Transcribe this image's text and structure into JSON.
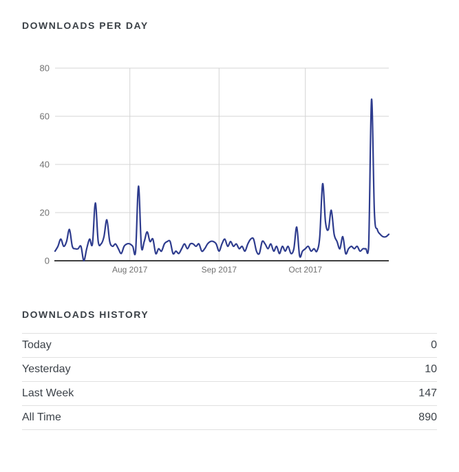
{
  "downloads_per_day": {
    "title": "DOWNLOADS PER DAY"
  },
  "chart_data": {
    "type": "line",
    "title": "DOWNLOADS PER DAY",
    "x_unit": "day",
    "x_tick_labels": [
      "Aug 2017",
      "Sep 2017",
      "Oct 2017"
    ],
    "x_tick_indices": [
      26,
      57,
      87
    ],
    "y_ticks": [
      0,
      20,
      40,
      60,
      80
    ],
    "ylim": [
      0,
      80
    ],
    "grid": true,
    "legend": "none",
    "line_color": "#2e3c8e",
    "grid_color": "#d4d4d4",
    "axis_color": "#3f3f3f",
    "tick_label_color": "#707070",
    "values": [
      4,
      6,
      9,
      6,
      8,
      13,
      6,
      5,
      5,
      6,
      0,
      5,
      9,
      7,
      24,
      8,
      7,
      10,
      17,
      8,
      6,
      7,
      5,
      3,
      6,
      7,
      7,
      6,
      4,
      31,
      6,
      8,
      12,
      8,
      9,
      3,
      5,
      4,
      7,
      8,
      8,
      3,
      4,
      3,
      5,
      7,
      5,
      7,
      7,
      6,
      7,
      4,
      5,
      7,
      8,
      8,
      7,
      4,
      7,
      9,
      6,
      8,
      6,
      7,
      5,
      6,
      4,
      7,
      9,
      9,
      4,
      3,
      8,
      7,
      5,
      7,
      4,
      6,
      3,
      6,
      4,
      6,
      3,
      5,
      14,
      2,
      4,
      5,
      6,
      4,
      5,
      4,
      10,
      32,
      16,
      13,
      21,
      11,
      8,
      5,
      10,
      3,
      5,
      6,
      5,
      6,
      4,
      5,
      5,
      6,
      67,
      20,
      13,
      11,
      10,
      10,
      11
    ]
  },
  "downloads_history": {
    "title": "DOWNLOADS HISTORY",
    "rows": [
      {
        "label": "Today",
        "value": "0"
      },
      {
        "label": "Yesterday",
        "value": "10"
      },
      {
        "label": "Last Week",
        "value": "147"
      },
      {
        "label": "All Time",
        "value": "890"
      }
    ]
  }
}
